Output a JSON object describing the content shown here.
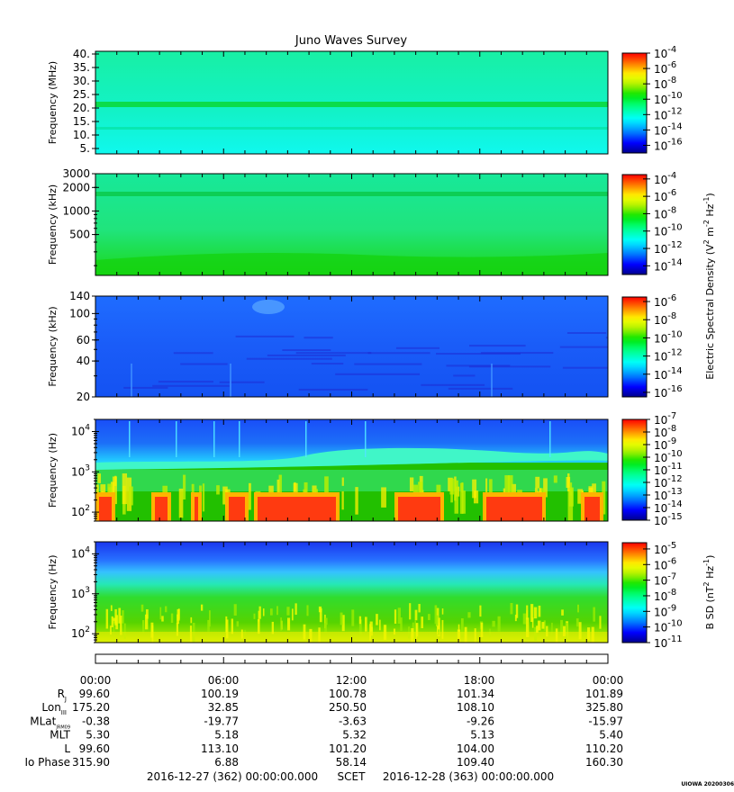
{
  "title": "Juno Waves Survey",
  "stamp": "UIOWA 20200306",
  "colors": {
    "background": "#ffffff",
    "panel_frame": "#000000"
  },
  "colorbars": {
    "efield_label": "Electric Spectral Density (V2 m-2 Hz-1)",
    "efield_label_parts": [
      "Electric Spectral Density (V",
      "2",
      " m",
      "-2",
      " Hz",
      "-1",
      ")"
    ],
    "bfield_label_parts": [
      "B SD (nT",
      "2",
      " Hz",
      "-1",
      ")"
    ]
  },
  "chart_data": [
    {
      "type": "heatmap",
      "panel": "HFR high",
      "ylabel": "Frequency (MHz)",
      "yscale": "linear",
      "ylim": [
        3,
        41
      ],
      "yticks": [
        "40.",
        "35.",
        "30.",
        "25.",
        "20.",
        "15.",
        "10.",
        "5."
      ],
      "ytick_values": [
        40,
        35,
        30,
        25,
        20,
        15,
        10,
        5
      ],
      "colorbar": {
        "min_exp": -17,
        "max_exp": -4,
        "labels": [
          "-4",
          "-6",
          "-8",
          "-10",
          "-12",
          "-14",
          "-16"
        ],
        "label_exps": [
          -4,
          -6,
          -8,
          -10,
          -12,
          -14,
          -16
        ]
      },
      "features": {
        "band_MHz": 21.5,
        "background_level": -12.5
      }
    },
    {
      "type": "heatmap",
      "panel": "HFR low",
      "ylabel": "Frequency (kHz)",
      "yscale": "log",
      "ylim": [
        150,
        3000
      ],
      "yticks": [
        "3000",
        "2000",
        "1000",
        "500"
      ],
      "ytick_values": [
        3000,
        2000,
        1000,
        500
      ],
      "colorbar": {
        "min_exp": -15,
        "max_exp": -3.5,
        "labels": [
          "-4",
          "-6",
          "-8",
          "-10",
          "-12",
          "-14"
        ],
        "label_exps": [
          -4,
          -6,
          -8,
          -10,
          -12,
          -14
        ]
      }
    },
    {
      "type": "heatmap",
      "panel": "LFR high",
      "ylabel": "Frequency (kHz)",
      "yscale": "log",
      "ylim": [
        20,
        140
      ],
      "yticks": [
        "140",
        "100",
        "60",
        "40",
        "20"
      ],
      "ytick_values": [
        140,
        100,
        60,
        40,
        20
      ],
      "colorbar": {
        "min_exp": -16.5,
        "max_exp": -5.5,
        "labels": [
          "-6",
          "-8",
          "-10",
          "-12",
          "-14",
          "-16"
        ],
        "label_exps": [
          -6,
          -8,
          -10,
          -12,
          -14,
          -16
        ]
      }
    },
    {
      "type": "heatmap",
      "panel": "LFR low",
      "ylabel": "Frequency (Hz)",
      "yscale": "log",
      "ylim": [
        60,
        20000
      ],
      "yticks": [
        "4",
        "3",
        "2"
      ],
      "ytick_values": [
        10000,
        1000,
        100
      ],
      "colorbar": {
        "min_exp": -15,
        "max_exp": -7,
        "labels": [
          "-7",
          "-8",
          "-9",
          "-10",
          "-11",
          "-12",
          "-13",
          "-14",
          "-15"
        ],
        "label_exps": [
          -7,
          -8,
          -9,
          -10,
          -11,
          -12,
          -13,
          -14,
          -15
        ]
      }
    },
    {
      "type": "heatmap",
      "panel": "B field",
      "ylabel": "Frequency (Hz)",
      "yscale": "log",
      "ylim": [
        60,
        20000
      ],
      "yticks": [
        "4",
        "3",
        "2"
      ],
      "ytick_values": [
        10000,
        1000,
        100
      ],
      "colorbar": {
        "min_exp": -11,
        "max_exp": -4.6,
        "labels": [
          "-5",
          "-6",
          "-7",
          "-8",
          "-9",
          "-10",
          "-11"
        ],
        "label_exps": [
          -5,
          -6,
          -7,
          -8,
          -9,
          -10,
          -11
        ]
      }
    }
  ],
  "ephemeris": {
    "times": [
      "00:00",
      "06:00",
      "12:00",
      "18:00",
      "00:00"
    ],
    "rows": [
      {
        "label": "R",
        "sub": "J",
        "values": [
          "99.60",
          "100.19",
          "100.78",
          "101.34",
          "101.89"
        ]
      },
      {
        "label": "Lon",
        "sub": "III",
        "values": [
          "175.20",
          "32.85",
          "250.50",
          "108.10",
          "325.80"
        ]
      },
      {
        "label": "MLat",
        "sub": "JRM09",
        "values": [
          "-0.38",
          "-19.77",
          "-3.63",
          "-9.26",
          "-15.97"
        ]
      },
      {
        "label": "MLT",
        "sub": "",
        "values": [
          "5.30",
          "5.18",
          "5.32",
          "5.13",
          "5.40"
        ]
      },
      {
        "label": "L",
        "sub": "",
        "values": [
          "99.60",
          "113.10",
          "101.20",
          "104.00",
          "110.20"
        ]
      },
      {
        "label": "Io Phase",
        "sub": "",
        "values": [
          "315.90",
          "6.88",
          "58.14",
          "109.40",
          "160.30"
        ]
      }
    ]
  },
  "footer": {
    "start": "2016-12-27 (362) 00:00:00.000",
    "scet": "SCET",
    "end": "2016-12-28 (363) 00:00:00.000"
  }
}
